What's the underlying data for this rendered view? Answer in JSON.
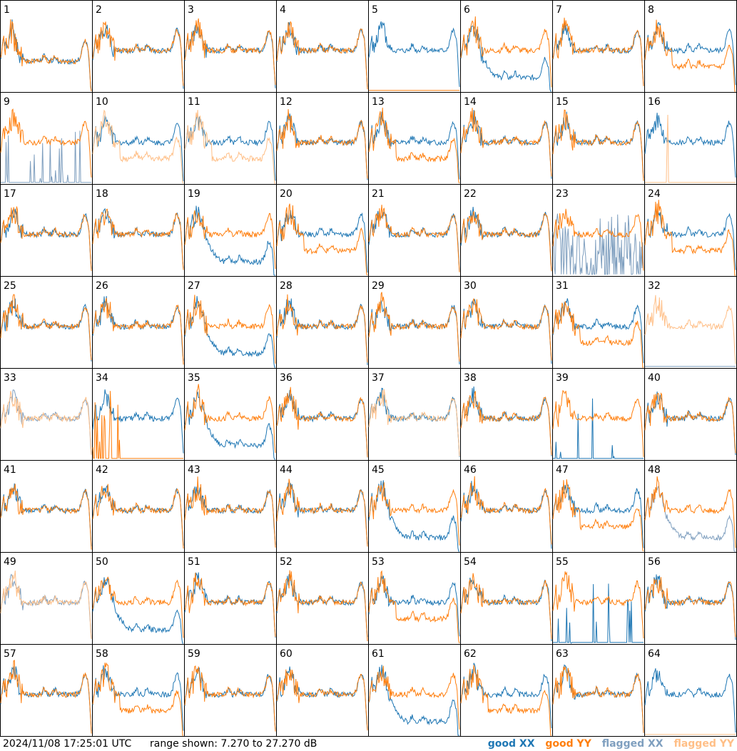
{
  "footer": {
    "timestamp": "2024/11/08 17:25:01 UTC",
    "range_text": "range shown: 7.270 to 27.270 dB"
  },
  "legend": {
    "good_xx": "good XX",
    "good_yy": "good YY",
    "flagged_xx": "flagged XX",
    "flagged_yy": "flagged YY"
  },
  "colors": {
    "good_xx": "#1f77b4",
    "good_yy": "#ff7f0e",
    "flagged_xx": "#7f9fbf",
    "flagged_yy": "#ffbf87",
    "grid": "#000000"
  },
  "chart_data": {
    "type": "line",
    "title": "",
    "xlabel": "",
    "ylabel": "",
    "ylim": [
      7.27,
      27.27
    ],
    "grid_rows": 8,
    "grid_cols": 8,
    "panels": [
      {
        "label": "1",
        "xx": "good",
        "yy": "good",
        "shape": "deep_dip"
      },
      {
        "label": "2",
        "xx": "good",
        "yy": "good",
        "shape": "normal"
      },
      {
        "label": "3",
        "xx": "good",
        "yy": "good",
        "shape": "normal"
      },
      {
        "label": "4",
        "xx": "good",
        "yy": "good",
        "shape": "normal"
      },
      {
        "label": "5",
        "xx": "good",
        "yy": "good",
        "shape": "yy_flat_low"
      },
      {
        "label": "6",
        "xx": "good",
        "yy": "good",
        "shape": "xx_low"
      },
      {
        "label": "7",
        "xx": "good",
        "yy": "good",
        "shape": "normal"
      },
      {
        "label": "8",
        "xx": "good",
        "yy": "good",
        "shape": "yy_low"
      },
      {
        "label": "9",
        "xx": "flagged",
        "yy": "good",
        "shape": "xx_spikes"
      },
      {
        "label": "10",
        "xx": "good",
        "yy": "flagged",
        "shape": "yy_low"
      },
      {
        "label": "11",
        "xx": "good",
        "yy": "flagged",
        "shape": "yy_low"
      },
      {
        "label": "12",
        "xx": "good",
        "yy": "good",
        "shape": "normal"
      },
      {
        "label": "13",
        "xx": "good",
        "yy": "good",
        "shape": "yy_low"
      },
      {
        "label": "14",
        "xx": "good",
        "yy": "good",
        "shape": "normal"
      },
      {
        "label": "15",
        "xx": "good",
        "yy": "good",
        "shape": "normal"
      },
      {
        "label": "16",
        "xx": "good",
        "yy": "flagged",
        "shape": "yy_spike"
      },
      {
        "label": "17",
        "xx": "good",
        "yy": "good",
        "shape": "normal"
      },
      {
        "label": "18",
        "xx": "good",
        "yy": "good",
        "shape": "normal"
      },
      {
        "label": "19",
        "xx": "good",
        "yy": "good",
        "shape": "xx_low"
      },
      {
        "label": "20",
        "xx": "good",
        "yy": "good",
        "shape": "yy_low"
      },
      {
        "label": "21",
        "xx": "good",
        "yy": "good",
        "shape": "normal"
      },
      {
        "label": "22",
        "xx": "good",
        "yy": "good",
        "shape": "normal"
      },
      {
        "label": "23",
        "xx": "flagged",
        "yy": "good",
        "shape": "xx_noise"
      },
      {
        "label": "24",
        "xx": "good",
        "yy": "good",
        "shape": "yy_low"
      },
      {
        "label": "25",
        "xx": "good",
        "yy": "good",
        "shape": "normal"
      },
      {
        "label": "26",
        "xx": "good",
        "yy": "good",
        "shape": "normal"
      },
      {
        "label": "27",
        "xx": "good",
        "yy": "good",
        "shape": "xx_low"
      },
      {
        "label": "28",
        "xx": "good",
        "yy": "good",
        "shape": "normal"
      },
      {
        "label": "29",
        "xx": "good",
        "yy": "good",
        "shape": "normal"
      },
      {
        "label": "30",
        "xx": "good",
        "yy": "good",
        "shape": "normal"
      },
      {
        "label": "31",
        "xx": "good",
        "yy": "good",
        "shape": "yy_low"
      },
      {
        "label": "32",
        "xx": "flagged",
        "yy": "flagged",
        "shape": "yy_only"
      },
      {
        "label": "33",
        "xx": "flagged",
        "yy": "flagged",
        "shape": "normal"
      },
      {
        "label": "34",
        "xx": "good",
        "yy": "good",
        "shape": "yy_spikes"
      },
      {
        "label": "35",
        "xx": "good",
        "yy": "good",
        "shape": "xx_low"
      },
      {
        "label": "36",
        "xx": "good",
        "yy": "good",
        "shape": "normal"
      },
      {
        "label": "37",
        "xx": "good",
        "yy": "flagged",
        "shape": "normal"
      },
      {
        "label": "38",
        "xx": "good",
        "yy": "good",
        "shape": "normal"
      },
      {
        "label": "39",
        "xx": "good",
        "yy": "good",
        "shape": "xx_spike"
      },
      {
        "label": "40",
        "xx": "good",
        "yy": "good",
        "shape": "normal"
      },
      {
        "label": "41",
        "xx": "good",
        "yy": "good",
        "shape": "normal"
      },
      {
        "label": "42",
        "xx": "good",
        "yy": "good",
        "shape": "normal"
      },
      {
        "label": "43",
        "xx": "good",
        "yy": "good",
        "shape": "normal"
      },
      {
        "label": "44",
        "xx": "good",
        "yy": "good",
        "shape": "normal"
      },
      {
        "label": "45",
        "xx": "good",
        "yy": "good",
        "shape": "xx_low"
      },
      {
        "label": "46",
        "xx": "good",
        "yy": "good",
        "shape": "normal"
      },
      {
        "label": "47",
        "xx": "good",
        "yy": "good",
        "shape": "yy_low"
      },
      {
        "label": "48",
        "xx": "flagged",
        "yy": "good",
        "shape": "xx_low"
      },
      {
        "label": "49",
        "xx": "flagged",
        "yy": "flagged",
        "shape": "normal"
      },
      {
        "label": "50",
        "xx": "good",
        "yy": "good",
        "shape": "xx_low"
      },
      {
        "label": "51",
        "xx": "good",
        "yy": "good",
        "shape": "normal"
      },
      {
        "label": "52",
        "xx": "good",
        "yy": "good",
        "shape": "normal"
      },
      {
        "label": "53",
        "xx": "good",
        "yy": "good",
        "shape": "yy_low"
      },
      {
        "label": "54",
        "xx": "good",
        "yy": "good",
        "shape": "normal"
      },
      {
        "label": "55",
        "xx": "good",
        "yy": "good",
        "shape": "xx_spikes"
      },
      {
        "label": "56",
        "xx": "good",
        "yy": "good",
        "shape": "normal"
      },
      {
        "label": "57",
        "xx": "good",
        "yy": "good",
        "shape": "normal"
      },
      {
        "label": "58",
        "xx": "good",
        "yy": "good",
        "shape": "yy_low"
      },
      {
        "label": "59",
        "xx": "good",
        "yy": "good",
        "shape": "normal"
      },
      {
        "label": "60",
        "xx": "good",
        "yy": "good",
        "shape": "normal"
      },
      {
        "label": "61",
        "xx": "good",
        "yy": "good",
        "shape": "xx_low"
      },
      {
        "label": "62",
        "xx": "good",
        "yy": "good",
        "shape": "yy_low"
      },
      {
        "label": "63",
        "xx": "good",
        "yy": "good",
        "shape": "normal"
      },
      {
        "label": "64",
        "xx": "good",
        "yy": "flagged",
        "shape": "yy_spike"
      }
    ]
  }
}
